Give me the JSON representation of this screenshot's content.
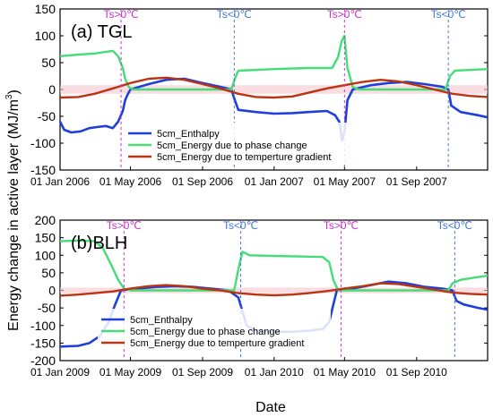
{
  "figure": {
    "ylabel_html_base": "Energy change in active layer (MJ/m",
    "ylabel_sup": "3",
    "ylabel_tail": ")",
    "xlabel": "Date"
  },
  "chart_data": [
    {
      "type": "line",
      "panel_label": "(a) TGL",
      "ylim": [
        -150,
        150
      ],
      "yticks": [
        -150,
        -100,
        -50,
        0,
        50,
        100,
        150
      ],
      "xlim": [
        "2006-01-01",
        "2007-12-31"
      ],
      "xticks": [
        {
          "date": "2006-01-01",
          "label": "01 Jan 2006"
        },
        {
          "date": "2006-05-01",
          "label": "01 May 2006"
        },
        {
          "date": "2006-09-01",
          "label": "01 Sep 2006"
        },
        {
          "date": "2007-01-01",
          "label": "01 Jan 2007"
        },
        {
          "date": "2007-05-01",
          "label": "01 May 2007"
        },
        {
          "date": "2007-09-01",
          "label": "01 Sep 2007"
        }
      ],
      "annotations": [
        {
          "date": "2006-04-15",
          "text": "Ts>0℃",
          "color": "#cc33cc"
        },
        {
          "date": "2006-10-25",
          "text": "Ts<0℃",
          "color": "#4477dd"
        },
        {
          "date": "2007-05-01",
          "text": "Ts>0℃",
          "color": "#cc33cc"
        },
        {
          "date": "2007-10-25",
          "text": "Ts<0℃",
          "color": "#4477dd"
        }
      ],
      "legend_position": "bottom-center",
      "series": [
        {
          "name": "5cm_Enthalpy",
          "color": "#1f3fdd",
          "points": [
            [
              "2006-01-01",
              -60
            ],
            [
              "2006-01-08",
              -75
            ],
            [
              "2006-01-20",
              -80
            ],
            [
              "2006-02-05",
              -78
            ],
            [
              "2006-02-20",
              -72
            ],
            [
              "2006-03-05",
              -70
            ],
            [
              "2006-03-20",
              -68
            ],
            [
              "2006-04-01",
              -72
            ],
            [
              "2006-04-10",
              -60
            ],
            [
              "2006-04-18",
              -40
            ],
            [
              "2006-04-22",
              -20
            ],
            [
              "2006-04-26",
              -10
            ],
            [
              "2006-05-01",
              0
            ],
            [
              "2006-06-01",
              10
            ],
            [
              "2006-07-01",
              18
            ],
            [
              "2006-08-01",
              20
            ],
            [
              "2006-09-01",
              12
            ],
            [
              "2006-10-01",
              5
            ],
            [
              "2006-10-20",
              0
            ],
            [
              "2006-10-26",
              -20
            ],
            [
              "2006-11-01",
              -38
            ],
            [
              "2006-12-01",
              -42
            ],
            [
              "2007-01-01",
              -45
            ],
            [
              "2007-02-01",
              -44
            ],
            [
              "2007-03-01",
              -42
            ],
            [
              "2007-04-01",
              -40
            ],
            [
              "2007-04-15",
              -48
            ],
            [
              "2007-04-22",
              -60
            ],
            [
              "2007-04-27",
              -95
            ],
            [
              "2007-05-01",
              -80
            ],
            [
              "2007-05-06",
              -20
            ],
            [
              "2007-05-15",
              0
            ],
            [
              "2007-06-15",
              8
            ],
            [
              "2007-07-15",
              12
            ],
            [
              "2007-08-15",
              14
            ],
            [
              "2007-09-15",
              10
            ],
            [
              "2007-10-15",
              5
            ],
            [
              "2007-10-25",
              0
            ],
            [
              "2007-10-30",
              -30
            ],
            [
              "2007-11-15",
              -42
            ],
            [
              "2007-12-15",
              -48
            ],
            [
              "2007-12-31",
              -52
            ]
          ]
        },
        {
          "name": "5cm_Energy due to phase change",
          "color": "#44dd77",
          "points": [
            [
              "2006-01-01",
              62
            ],
            [
              "2006-02-01",
              65
            ],
            [
              "2006-03-01",
              67
            ],
            [
              "2006-04-01",
              72
            ],
            [
              "2006-04-10",
              62
            ],
            [
              "2006-04-18",
              40
            ],
            [
              "2006-04-22",
              20
            ],
            [
              "2006-04-28",
              5
            ],
            [
              "2006-05-05",
              0
            ],
            [
              "2006-10-20",
              0
            ],
            [
              "2006-10-26",
              20
            ],
            [
              "2006-11-01",
              35
            ],
            [
              "2007-01-01",
              38
            ],
            [
              "2007-03-01",
              40
            ],
            [
              "2007-04-10",
              40
            ],
            [
              "2007-04-20",
              60
            ],
            [
              "2007-04-26",
              90
            ],
            [
              "2007-05-01",
              100
            ],
            [
              "2007-05-06",
              40
            ],
            [
              "2007-05-15",
              5
            ],
            [
              "2007-05-25",
              0
            ],
            [
              "2007-10-20",
              0
            ],
            [
              "2007-10-28",
              25
            ],
            [
              "2007-11-05",
              35
            ],
            [
              "2007-12-31",
              38
            ]
          ]
        },
        {
          "name": "5cm_Energy due to  temperture gradient",
          "color": "#bb3311",
          "points": [
            [
              "2006-01-01",
              -15
            ],
            [
              "2006-02-01",
              -14
            ],
            [
              "2006-03-01",
              -8
            ],
            [
              "2006-04-01",
              2
            ],
            [
              "2006-05-01",
              12
            ],
            [
              "2006-06-01",
              20
            ],
            [
              "2006-07-01",
              22
            ],
            [
              "2006-08-01",
              18
            ],
            [
              "2006-09-01",
              10
            ],
            [
              "2006-10-01",
              2
            ],
            [
              "2006-11-01",
              -8
            ],
            [
              "2006-12-01",
              -14
            ],
            [
              "2007-01-01",
              -15
            ],
            [
              "2007-02-01",
              -13
            ],
            [
              "2007-03-01",
              -6
            ],
            [
              "2007-04-01",
              2
            ],
            [
              "2007-05-01",
              8
            ],
            [
              "2007-06-01",
              14
            ],
            [
              "2007-07-01",
              18
            ],
            [
              "2007-08-01",
              15
            ],
            [
              "2007-09-01",
              8
            ],
            [
              "2007-10-01",
              0
            ],
            [
              "2007-11-01",
              -8
            ],
            [
              "2007-12-01",
              -12
            ],
            [
              "2007-12-31",
              -14
            ]
          ]
        }
      ]
    },
    {
      "type": "line",
      "panel_label": "(b)BLH",
      "ylim": [
        -200,
        200
      ],
      "yticks": [
        -200,
        -150,
        -100,
        -50,
        0,
        50,
        100,
        150,
        200
      ],
      "xlim": [
        "2009-01-01",
        "2010-12-31"
      ],
      "xticks": [
        {
          "date": "2009-01-01",
          "label": "01 Jan 2009"
        },
        {
          "date": "2009-05-01",
          "label": "01 May 2009"
        },
        {
          "date": "2009-09-01",
          "label": "01 Sep 2009"
        },
        {
          "date": "2010-01-01",
          "label": "01 Jan 2010"
        },
        {
          "date": "2010-05-01",
          "label": "01 May 2010"
        },
        {
          "date": "2010-09-01",
          "label": "01 Sep 2010"
        }
      ],
      "annotations": [
        {
          "date": "2009-04-20",
          "text": "Ts>0℃",
          "color": "#cc33cc"
        },
        {
          "date": "2009-11-05",
          "text": "Ts<0℃",
          "color": "#4477dd"
        },
        {
          "date": "2010-04-25",
          "text": "Ts>0℃",
          "color": "#cc33cc"
        },
        {
          "date": "2010-11-05",
          "text": "Ts<0℃",
          "color": "#4477dd"
        }
      ],
      "legend_position": "bottom-center",
      "series": [
        {
          "name": "5cm_Enthalpy",
          "color": "#1f3fdd",
          "points": [
            [
              "2009-01-01",
              -160
            ],
            [
              "2009-02-01",
              -158
            ],
            [
              "2009-02-20",
              -150
            ],
            [
              "2009-03-10",
              -130
            ],
            [
              "2009-03-25",
              -90
            ],
            [
              "2009-04-05",
              -40
            ],
            [
              "2009-04-15",
              0
            ],
            [
              "2009-05-15",
              5
            ],
            [
              "2009-06-15",
              10
            ],
            [
              "2009-07-15",
              12
            ],
            [
              "2009-08-15",
              10
            ],
            [
              "2009-09-15",
              5
            ],
            [
              "2009-10-15",
              0
            ],
            [
              "2009-11-01",
              -20
            ],
            [
              "2009-11-08",
              -60
            ],
            [
              "2009-11-15",
              -100
            ],
            [
              "2009-12-01",
              -115
            ],
            [
              "2010-01-01",
              -118
            ],
            [
              "2010-02-01",
              -118
            ],
            [
              "2010-03-01",
              -115
            ],
            [
              "2010-03-25",
              -110
            ],
            [
              "2010-04-05",
              -90
            ],
            [
              "2010-04-12",
              -40
            ],
            [
              "2010-04-18",
              0
            ],
            [
              "2010-05-15",
              5
            ],
            [
              "2010-06-15",
              15
            ],
            [
              "2010-07-15",
              25
            ],
            [
              "2010-08-15",
              20
            ],
            [
              "2010-09-15",
              10
            ],
            [
              "2010-10-15",
              5
            ],
            [
              "2010-11-01",
              0
            ],
            [
              "2010-11-08",
              -30
            ],
            [
              "2010-11-20",
              -40
            ],
            [
              "2010-12-15",
              -50
            ],
            [
              "2010-12-31",
              -55
            ]
          ]
        },
        {
          "name": "5cm_Energy due to phase change",
          "color": "#44dd77",
          "points": [
            [
              "2009-01-01",
              140
            ],
            [
              "2009-02-01",
              142
            ],
            [
              "2009-03-01",
              140
            ],
            [
              "2009-03-15",
              120
            ],
            [
              "2009-03-30",
              70
            ],
            [
              "2009-04-10",
              30
            ],
            [
              "2009-04-20",
              5
            ],
            [
              "2009-05-01",
              0
            ],
            [
              "2009-10-25",
              0
            ],
            [
              "2009-11-01",
              60
            ],
            [
              "2009-11-08",
              110
            ],
            [
              "2009-11-20",
              100
            ],
            [
              "2010-01-01",
              98
            ],
            [
              "2010-03-01",
              96
            ],
            [
              "2010-03-25",
              95
            ],
            [
              "2010-04-05",
              80
            ],
            [
              "2010-04-12",
              30
            ],
            [
              "2010-04-20",
              0
            ],
            [
              "2010-10-25",
              0
            ],
            [
              "2010-11-01",
              20
            ],
            [
              "2010-11-15",
              30
            ],
            [
              "2010-12-15",
              38
            ],
            [
              "2010-12-31",
              42
            ]
          ]
        },
        {
          "name": "5cm_Energy due to  temperture gradient",
          "color": "#bb3311",
          "points": [
            [
              "2009-01-01",
              -15
            ],
            [
              "2009-02-01",
              -12
            ],
            [
              "2009-03-01",
              -8
            ],
            [
              "2009-04-01",
              -3
            ],
            [
              "2009-05-01",
              5
            ],
            [
              "2009-06-01",
              12
            ],
            [
              "2009-07-01",
              15
            ],
            [
              "2009-08-01",
              12
            ],
            [
              "2009-09-01",
              5
            ],
            [
              "2009-10-01",
              0
            ],
            [
              "2009-11-01",
              -8
            ],
            [
              "2009-12-01",
              -12
            ],
            [
              "2010-01-01",
              -14
            ],
            [
              "2010-02-01",
              -12
            ],
            [
              "2010-03-01",
              -8
            ],
            [
              "2010-04-01",
              -2
            ],
            [
              "2010-05-01",
              5
            ],
            [
              "2010-06-01",
              12
            ],
            [
              "2010-07-01",
              20
            ],
            [
              "2010-08-01",
              18
            ],
            [
              "2010-09-01",
              10
            ],
            [
              "2010-10-01",
              2
            ],
            [
              "2010-11-01",
              -6
            ],
            [
              "2010-12-01",
              -10
            ],
            [
              "2010-12-31",
              -12
            ]
          ]
        }
      ]
    }
  ]
}
